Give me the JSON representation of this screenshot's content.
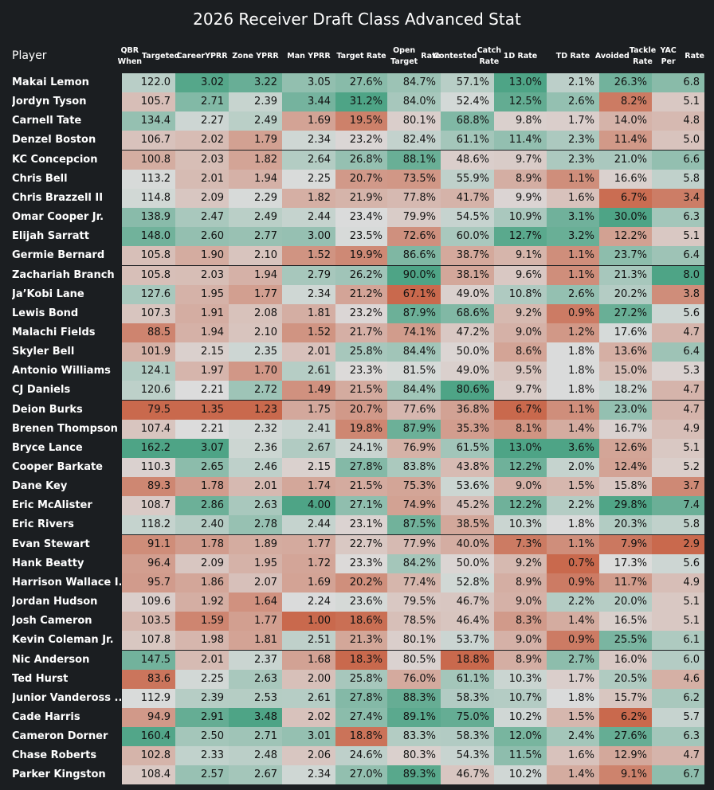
{
  "chart_data": {
    "type": "table",
    "title": "2026 Receiver Draft Class Advanced Stat",
    "row_header": "Player",
    "columns": [
      {
        "key": "qbr",
        "label": "QBR When Targeted",
        "lines": [
          "QBR When",
          "Targeted"
        ],
        "decimals": 1,
        "suffix": ""
      },
      {
        "key": "career_yprr",
        "label": "Career YPRR",
        "lines": [
          "Career",
          "YPRR"
        ],
        "decimals": 2,
        "suffix": ""
      },
      {
        "key": "zone_yprr",
        "label": "Zone YPRR",
        "lines": [
          "Zone YPRR"
        ],
        "decimals": 2,
        "suffix": ""
      },
      {
        "key": "man_yprr",
        "label": "Man YPRR",
        "lines": [
          "Man YPRR"
        ],
        "decimals": 2,
        "suffix": ""
      },
      {
        "key": "target_rate",
        "label": "Target Rate",
        "lines": [
          "Target Rate"
        ],
        "decimals": 1,
        "suffix": "%"
      },
      {
        "key": "open_target_rate",
        "label": "Open Target Rate",
        "lines": [
          "Open Target",
          "Rate"
        ],
        "decimals": 1,
        "suffix": "%"
      },
      {
        "key": "contested_catch_rate",
        "label": "Contested Catch Rate",
        "lines": [
          "Contested",
          "Catch Rate"
        ],
        "decimals": 1,
        "suffix": "%"
      },
      {
        "key": "first_down_rate",
        "label": "1D Rate",
        "lines": [
          "1D Rate"
        ],
        "decimals": 1,
        "suffix": "%"
      },
      {
        "key": "td_rate",
        "label": "TD Rate",
        "lines": [
          "TD Rate"
        ],
        "decimals": 1,
        "suffix": "%"
      },
      {
        "key": "avoided_tackle_rate",
        "label": "Avoided Tackle Rate",
        "lines": [
          "Avoided",
          "Tackle Rate"
        ],
        "decimals": 1,
        "suffix": "%"
      },
      {
        "key": "yac_per_rate",
        "label": "YAC Per Rate",
        "lines": [
          "YAC Per",
          "Rate"
        ],
        "decimals": 1,
        "suffix": ""
      }
    ],
    "color_scale": {
      "low": "#c9694d",
      "mid": "#dcdcdc",
      "high": "#4ea486"
    },
    "rows": [
      {
        "player": "Makai Lemon",
        "values": [
          122.0,
          3.02,
          3.22,
          3.05,
          27.6,
          84.7,
          57.1,
          13.0,
          2.1,
          26.3,
          6.8
        ]
      },
      {
        "player": "Jordyn Tyson",
        "values": [
          105.7,
          2.71,
          2.39,
          3.44,
          31.2,
          84.0,
          52.4,
          12.5,
          2.6,
          8.2,
          5.1
        ]
      },
      {
        "player": "Carnell Tate",
        "values": [
          134.4,
          2.27,
          2.49,
          1.69,
          19.5,
          80.1,
          68.8,
          9.8,
          1.7,
          14.0,
          4.8
        ]
      },
      {
        "player": "Denzel Boston",
        "values": [
          106.7,
          2.02,
          1.79,
          2.34,
          23.2,
          82.4,
          61.1,
          11.4,
          2.3,
          11.4,
          5.0
        ]
      },
      {
        "player": "KC Concepcion",
        "values": [
          100.8,
          2.03,
          1.82,
          2.64,
          26.8,
          88.1,
          48.6,
          9.7,
          2.3,
          21.0,
          6.6
        ]
      },
      {
        "player": "Chris Bell",
        "values": [
          113.2,
          2.01,
          1.94,
          2.25,
          20.7,
          73.5,
          55.9,
          8.9,
          1.1,
          16.6,
          5.8
        ]
      },
      {
        "player": "Chris Brazzell II",
        "values": [
          114.8,
          2.09,
          2.29,
          1.82,
          21.9,
          77.8,
          41.7,
          9.9,
          1.6,
          6.7,
          3.4
        ]
      },
      {
        "player": "Omar Cooper Jr.",
        "values": [
          138.9,
          2.47,
          2.49,
          2.44,
          23.4,
          79.9,
          54.5,
          10.9,
          3.1,
          30.0,
          6.3
        ]
      },
      {
        "player": "Elijah Sarratt",
        "values": [
          148.0,
          2.6,
          2.77,
          3.0,
          23.5,
          72.6,
          60.0,
          12.7,
          3.2,
          12.2,
          5.1
        ]
      },
      {
        "player": "Germie Bernard",
        "values": [
          105.8,
          1.9,
          2.1,
          1.52,
          19.9,
          86.6,
          38.7,
          9.1,
          1.1,
          23.7,
          6.4
        ]
      },
      {
        "player": "Zachariah Branch",
        "values": [
          105.8,
          2.03,
          1.94,
          2.79,
          26.2,
          90.0,
          38.1,
          9.6,
          1.1,
          21.3,
          8.0
        ]
      },
      {
        "player": "Ja’Kobi Lane",
        "values": [
          127.6,
          1.95,
          1.77,
          2.34,
          21.2,
          67.1,
          49.0,
          10.8,
          2.6,
          20.2,
          3.8
        ]
      },
      {
        "player": "Lewis Bond",
        "values": [
          107.3,
          1.91,
          2.08,
          1.81,
          23.2,
          87.9,
          68.6,
          9.2,
          0.9,
          27.2,
          5.6
        ]
      },
      {
        "player": "Malachi Fields",
        "values": [
          88.5,
          1.94,
          2.1,
          1.52,
          21.7,
          74.1,
          47.2,
          9.0,
          1.2,
          17.6,
          4.7
        ]
      },
      {
        "player": "Skyler Bell",
        "values": [
          101.9,
          2.15,
          2.35,
          2.01,
          25.8,
          84.4,
          50.0,
          8.6,
          1.8,
          13.6,
          6.4
        ]
      },
      {
        "player": "Antonio Williams",
        "values": [
          124.1,
          1.97,
          1.7,
          2.61,
          23.3,
          81.5,
          49.0,
          9.5,
          1.8,
          15.0,
          5.3
        ]
      },
      {
        "player": "CJ Daniels",
        "values": [
          120.6,
          2.21,
          2.72,
          1.49,
          21.5,
          84.4,
          80.6,
          9.7,
          1.8,
          18.2,
          4.7
        ]
      },
      {
        "player": "Deion Burks",
        "values": [
          79.5,
          1.35,
          1.23,
          1.75,
          20.7,
          77.6,
          36.8,
          6.7,
          1.1,
          23.0,
          4.7
        ]
      },
      {
        "player": "Brenen Thompson",
        "values": [
          107.4,
          2.21,
          2.32,
          2.41,
          19.8,
          87.9,
          35.3,
          8.1,
          1.4,
          16.7,
          4.9
        ]
      },
      {
        "player": "Bryce Lance",
        "values": [
          162.2,
          3.07,
          2.36,
          2.67,
          24.1,
          76.9,
          61.5,
          13.0,
          3.6,
          12.6,
          5.1
        ]
      },
      {
        "player": "Cooper Barkate",
        "values": [
          110.3,
          2.65,
          2.46,
          2.15,
          27.8,
          83.8,
          43.8,
          12.2,
          2.0,
          12.4,
          5.2
        ]
      },
      {
        "player": "Dane Key",
        "values": [
          89.3,
          1.78,
          2.01,
          1.74,
          21.5,
          75.3,
          53.6,
          9.0,
          1.5,
          15.8,
          3.7
        ]
      },
      {
        "player": "Eric McAlister",
        "values": [
          108.7,
          2.86,
          2.63,
          4.0,
          27.1,
          74.9,
          45.2,
          12.2,
          2.2,
          29.8,
          7.4
        ]
      },
      {
        "player": "Eric Rivers",
        "values": [
          118.2,
          2.4,
          2.78,
          2.44,
          23.1,
          87.5,
          38.5,
          10.3,
          1.8,
          20.3,
          5.8
        ]
      },
      {
        "player": "Evan Stewart",
        "values": [
          91.1,
          1.78,
          1.89,
          1.77,
          22.7,
          77.9,
          40.0,
          7.3,
          1.1,
          7.9,
          2.9
        ]
      },
      {
        "player": "Hank Beatty",
        "values": [
          96.4,
          2.09,
          1.95,
          1.72,
          23.3,
          84.2,
          50.0,
          9.2,
          0.7,
          17.3,
          5.6
        ]
      },
      {
        "player": "Harrison Wallace I..",
        "values": [
          95.7,
          1.86,
          2.07,
          1.69,
          20.2,
          77.4,
          52.8,
          8.9,
          0.9,
          11.7,
          4.9
        ]
      },
      {
        "player": "Jordan Hudson",
        "values": [
          109.6,
          1.92,
          1.64,
          2.24,
          23.6,
          79.5,
          46.7,
          9.0,
          2.2,
          20.0,
          5.1
        ]
      },
      {
        "player": "Josh Cameron",
        "values": [
          103.5,
          1.59,
          1.77,
          1.0,
          18.6,
          78.5,
          46.4,
          8.3,
          1.4,
          16.5,
          5.1
        ]
      },
      {
        "player": "Kevin Coleman Jr.",
        "values": [
          107.8,
          1.98,
          1.81,
          2.51,
          21.3,
          80.1,
          53.7,
          9.0,
          0.9,
          25.5,
          6.1
        ]
      },
      {
        "player": "Nic Anderson",
        "values": [
          147.5,
          2.01,
          2.37,
          1.68,
          18.3,
          80.5,
          18.8,
          8.9,
          2.7,
          16.0,
          6.0
        ]
      },
      {
        "player": "Ted Hurst",
        "values": [
          83.6,
          2.25,
          2.63,
          2.0,
          25.8,
          76.0,
          61.1,
          10.3,
          1.7,
          20.5,
          4.6
        ]
      },
      {
        "player": "Junior Vandeross ..",
        "values": [
          112.9,
          2.39,
          2.53,
          2.61,
          27.8,
          88.3,
          58.3,
          10.7,
          1.8,
          15.7,
          6.2
        ]
      },
      {
        "player": "Cade Harris",
        "values": [
          94.9,
          2.91,
          3.48,
          2.02,
          27.4,
          89.1,
          75.0,
          10.2,
          1.5,
          6.2,
          5.7
        ]
      },
      {
        "player": "Cameron Dorner",
        "values": [
          160.4,
          2.5,
          2.71,
          3.01,
          18.8,
          83.3,
          58.3,
          12.0,
          2.4,
          27.6,
          6.3
        ]
      },
      {
        "player": "Chase Roberts",
        "values": [
          102.8,
          2.33,
          2.48,
          2.06,
          24.6,
          80.3,
          54.3,
          11.5,
          1.6,
          12.9,
          4.7
        ]
      },
      {
        "player": "Parker Kingston",
        "values": [
          108.4,
          2.57,
          2.67,
          2.34,
          27.0,
          89.3,
          46.7,
          10.2,
          1.4,
          9.1,
          6.7
        ]
      }
    ]
  }
}
